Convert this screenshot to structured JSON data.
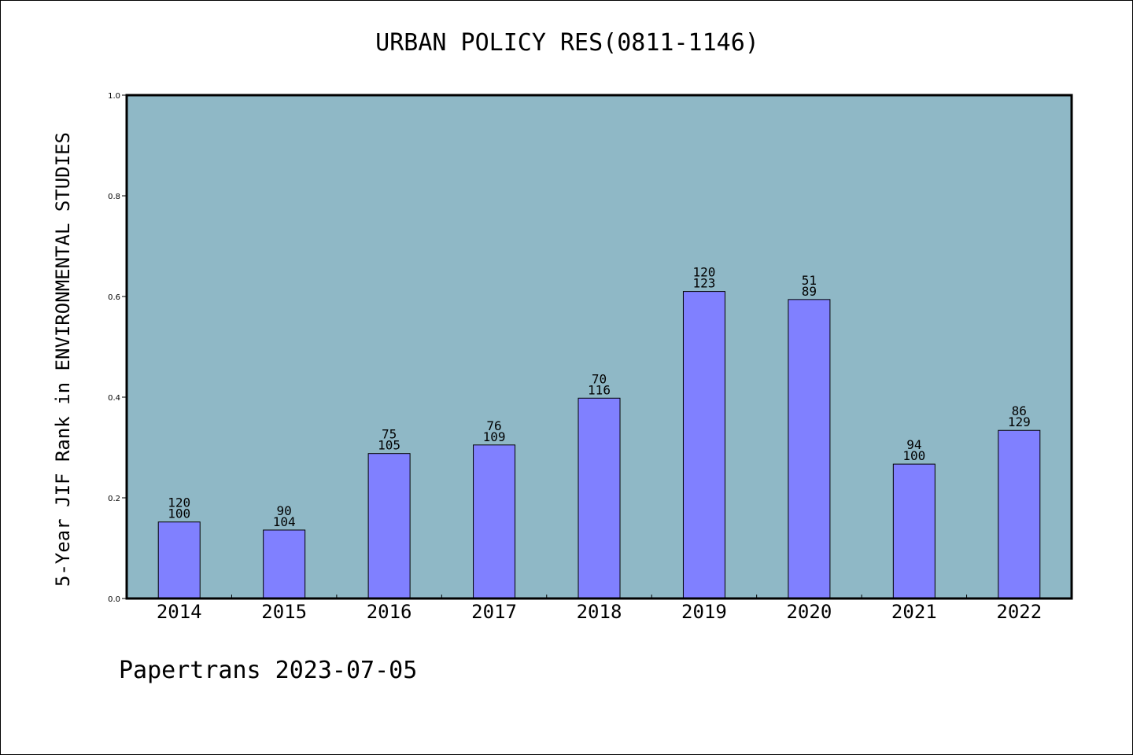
{
  "chart_data": {
    "type": "bar",
    "title": "URBAN POLICY RES(0811-1146)",
    "ylabel": "5-Year JIF Rank in ENVIRONMENTAL STUDIES",
    "xlabel": "",
    "ylim": [
      0.0,
      1.0
    ],
    "yticks": [
      "0.0",
      "0.2",
      "0.4",
      "0.6",
      "0.8",
      "1.0"
    ],
    "categories": [
      "2014",
      "2015",
      "2016",
      "2017",
      "2018",
      "2019",
      "2020",
      "2021",
      "2022"
    ],
    "values": [
      0.152,
      0.136,
      0.288,
      0.305,
      0.398,
      0.61,
      0.594,
      0.267,
      0.334
    ],
    "labels_top": [
      "120",
      "90",
      "75",
      "76",
      "70",
      "120",
      "51",
      "94",
      "86"
    ],
    "labels_bottom": [
      "100",
      "104",
      "105",
      "109",
      "116",
      "123",
      "89",
      "100",
      "129"
    ],
    "colors": {
      "plot_background": "#8fb8c6",
      "bar": "#8080ff",
      "axis": "#000000"
    },
    "grid": false
  },
  "footer": "Papertrans 2023-07-05"
}
